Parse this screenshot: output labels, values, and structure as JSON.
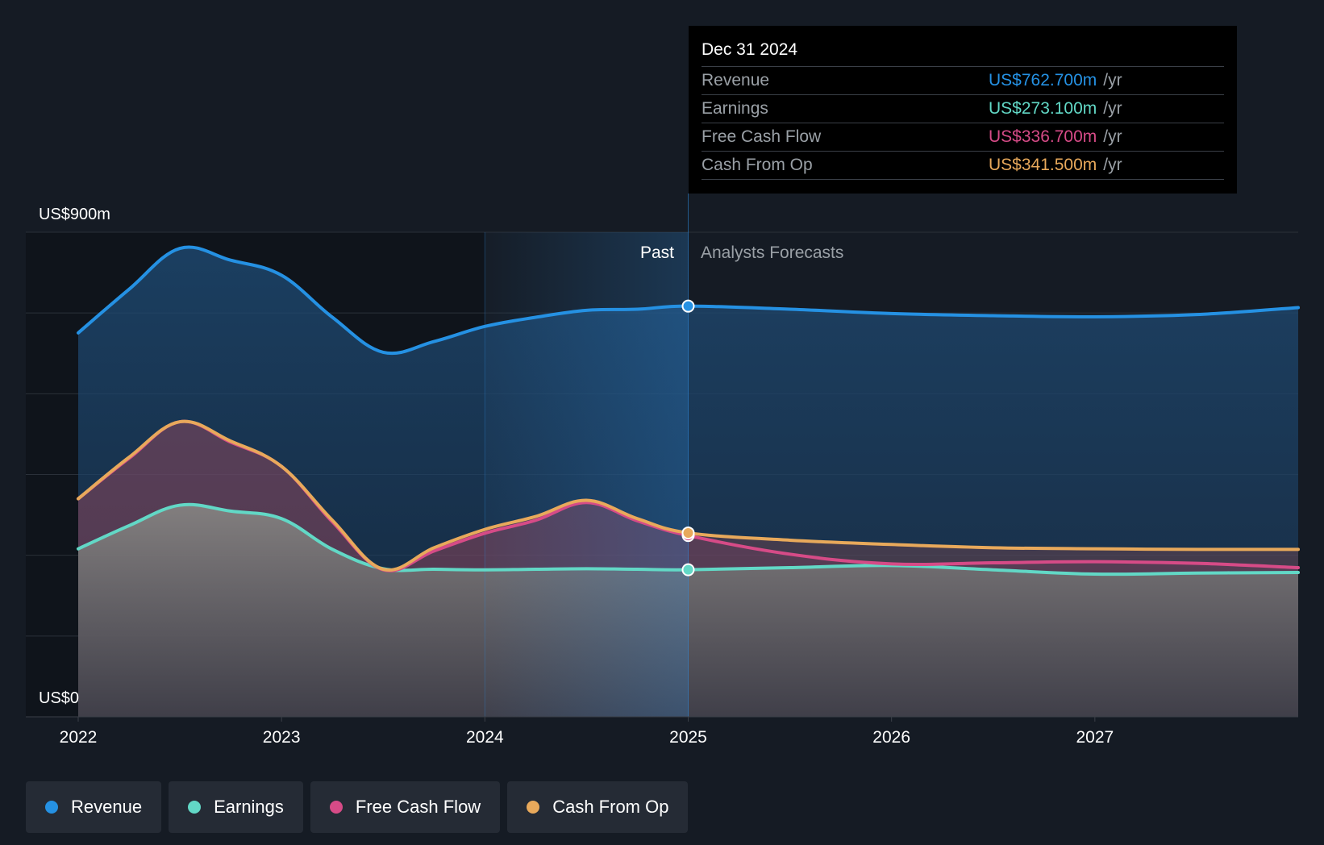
{
  "chart_data": {
    "type": "area",
    "y_axis": {
      "max_label": "US$900m",
      "min_label": "US$0",
      "ylim": [
        0,
        900
      ]
    },
    "x_ticks": [
      "2022",
      "2023",
      "2024",
      "2025",
      "2026",
      "2027"
    ],
    "x_range": [
      2022.0,
      2028.0
    ],
    "divider_x": 2025.0,
    "past_label": "Past",
    "forecast_label": "Analysts Forecasts",
    "series": [
      {
        "name": "Revenue",
        "color": "#2591e3",
        "x": [
          2022.0,
          2022.25,
          2022.5,
          2022.75,
          2023.0,
          2023.25,
          2023.5,
          2023.75,
          2024.0,
          2024.25,
          2024.5,
          2024.75,
          2025.0,
          2025.5,
          2026.0,
          2026.5,
          2027.0,
          2027.5,
          2028.0
        ],
        "y": [
          713,
          794,
          870,
          848,
          820,
          742,
          677,
          697,
          725,
          742,
          755,
          757,
          762.7,
          757,
          749,
          745,
          743,
          747,
          760
        ]
      },
      {
        "name": "Earnings",
        "color": "#62d8c6",
        "x": [
          2022.0,
          2022.25,
          2022.5,
          2022.75,
          2023.0,
          2023.25,
          2023.5,
          2023.75,
          2024.0,
          2024.25,
          2024.5,
          2024.75,
          2025.0,
          2025.5,
          2026.0,
          2026.5,
          2027.0,
          2027.5,
          2028.0
        ],
        "y": [
          312,
          355,
          393,
          382,
          368,
          311,
          275,
          274,
          273,
          274,
          275,
          274,
          273.1,
          277,
          281,
          273,
          265,
          267,
          268
        ]
      },
      {
        "name": "Free Cash Flow",
        "color": "#d64b87",
        "x": [
          2022.0,
          2022.25,
          2022.5,
          2022.75,
          2023.0,
          2023.25,
          2023.5,
          2023.75,
          2024.0,
          2024.25,
          2024.5,
          2024.75,
          2025.0,
          2025.5,
          2026.0,
          2026.5,
          2027.0,
          2027.5,
          2028.0
        ],
        "y": [
          405,
          480,
          548,
          510,
          465,
          362,
          273,
          308,
          341,
          365,
          398,
          364,
          336.7,
          302,
          284,
          286,
          288,
          285,
          277
        ]
      },
      {
        "name": "Cash From Op",
        "color": "#e8a95b",
        "x": [
          2022.0,
          2022.25,
          2022.5,
          2022.75,
          2023.0,
          2023.25,
          2023.5,
          2023.75,
          2024.0,
          2024.25,
          2024.5,
          2024.75,
          2025.0,
          2025.5,
          2026.0,
          2026.5,
          2027.0,
          2027.5,
          2028.0
        ],
        "y": [
          405,
          482,
          548,
          512,
          465,
          365,
          274,
          314,
          348,
          372,
          402,
          368,
          341.5,
          328,
          320,
          314,
          312,
          311,
          311
        ]
      }
    ],
    "grid": true
  },
  "tooltip": {
    "date": "Dec 31 2024",
    "rows": [
      {
        "label": "Revenue",
        "value": "US$762.700m",
        "unit": "/yr",
        "color": "#2591e3"
      },
      {
        "label": "Earnings",
        "value": "US$273.100m",
        "unit": "/yr",
        "color": "#62d8c6"
      },
      {
        "label": "Free Cash Flow",
        "value": "US$336.700m",
        "unit": "/yr",
        "color": "#d64b87"
      },
      {
        "label": "Cash From Op",
        "value": "US$341.500m",
        "unit": "/yr",
        "color": "#e8a95b"
      }
    ]
  },
  "legend": [
    {
      "label": "Revenue",
      "color": "#2591e3"
    },
    {
      "label": "Earnings",
      "color": "#62d8c6"
    },
    {
      "label": "Free Cash Flow",
      "color": "#d64b87"
    },
    {
      "label": "Cash From Op",
      "color": "#e8a95b"
    }
  ]
}
